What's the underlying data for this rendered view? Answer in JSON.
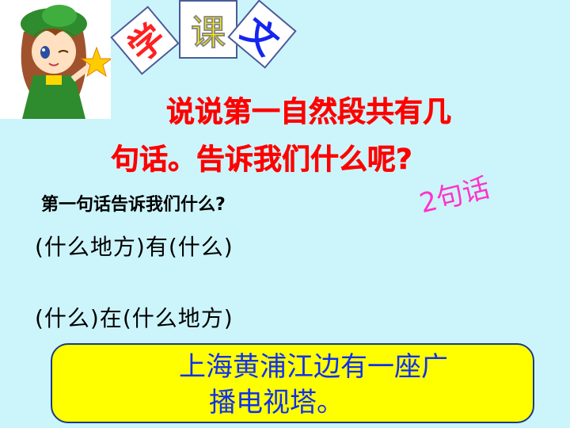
{
  "header": {
    "title_tiles": [
      "学",
      "课",
      "文"
    ]
  },
  "slide": {
    "title_line1": "说说第一自然段共有几",
    "title_line2": "句话。告诉我们什么呢?",
    "question": "第一句话告诉我们什么?",
    "annotation": "2句话",
    "pattern_1": "(什么地方)有(什么)",
    "pattern_2": "(什么)在(什么地方)",
    "answer_line1": "上海黄浦江边有一座广",
    "answer_line2": "播电视塔。"
  },
  "colors": {
    "background": "#ccf5fb",
    "title": "#ff0000",
    "annotation": "#ff33cc",
    "answer_box": "#ffff00",
    "answer_text": "#1030ee"
  },
  "icons": [
    "cartoon-girl-icon"
  ]
}
